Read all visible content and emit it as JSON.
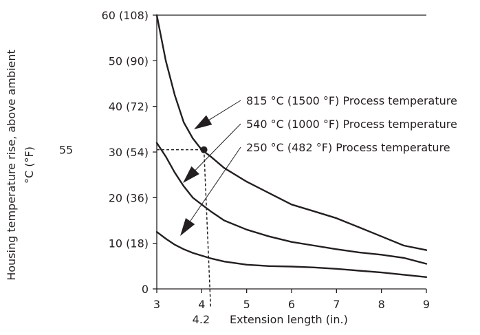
{
  "chart_data": {
    "type": "line",
    "xlabel": "Extension length (in.)",
    "ylabel": "Housing temperature rise, above ambient",
    "ylabel_unit": "°C (°F)",
    "xlim": [
      3,
      9
    ],
    "ylim": [
      0,
      60
    ],
    "x_ticks": [
      {
        "value": 3,
        "label": "3"
      },
      {
        "value": 4,
        "label": "4"
      },
      {
        "value": 5,
        "label": "5"
      },
      {
        "value": 6,
        "label": "6"
      },
      {
        "value": 7,
        "label": "7"
      },
      {
        "value": 8,
        "label": "8"
      },
      {
        "value": 9,
        "label": "9"
      }
    ],
    "y_ticks": [
      {
        "value": 0,
        "label": "0"
      },
      {
        "value": 10,
        "label": "10 (18)"
      },
      {
        "value": 20,
        "label": "20 (36)"
      },
      {
        "value": 30,
        "label": "30 (54)"
      },
      {
        "value": 40,
        "label": "40 (72)"
      },
      {
        "value": 50,
        "label": "50 (90)"
      },
      {
        "value": 60,
        "label": "60 (108)"
      }
    ],
    "ceiling_value": 60,
    "series": [
      {
        "name": "815 °C (1500 °F) Process temperature",
        "x": [
          3.0,
          3.2,
          3.4,
          3.6,
          3.8,
          4.0,
          4.2,
          4.5,
          5.0,
          5.5,
          6.0,
          6.5,
          7.0,
          7.5,
          8.0,
          8.5,
          9.0
        ],
        "y": [
          60.0,
          50.0,
          42.5,
          36.5,
          33.0,
          30.5,
          29.0,
          26.5,
          23.5,
          21.0,
          18.5,
          17.0,
          15.5,
          13.5,
          11.5,
          9.5,
          8.5
        ]
      },
      {
        "name": "540 °C (1000 °F) Process temperature",
        "x": [
          3.0,
          3.2,
          3.4,
          3.6,
          3.8,
          4.0,
          4.2,
          4.5,
          5.0,
          5.5,
          6.0,
          6.5,
          7.0,
          7.5,
          8.0,
          8.5,
          9.0
        ],
        "y": [
          32.0,
          29.0,
          25.5,
          22.5,
          20.0,
          18.5,
          17.0,
          15.0,
          13.0,
          11.5,
          10.3,
          9.5,
          8.7,
          8.0,
          7.5,
          6.8,
          5.5
        ]
      },
      {
        "name": "250 °C (482 °F) Process temperature",
        "x": [
          3.0,
          3.2,
          3.4,
          3.6,
          3.8,
          4.0,
          4.2,
          4.5,
          5.0,
          5.5,
          6.0,
          6.5,
          7.0,
          7.5,
          8.0,
          8.5,
          9.0
        ],
        "y": [
          12.5,
          11.0,
          9.7,
          8.7,
          7.9,
          7.3,
          6.7,
          6.0,
          5.3,
          5.0,
          4.9,
          4.7,
          4.4,
          4.0,
          3.6,
          3.1,
          2.6
        ]
      }
    ],
    "annotations": {
      "x_marker": {
        "value": 4.2,
        "label": "4.2"
      },
      "y_marker": {
        "value": 30.5,
        "label": "55"
      },
      "point": {
        "x": 4.05,
        "y": 30.5
      }
    }
  }
}
